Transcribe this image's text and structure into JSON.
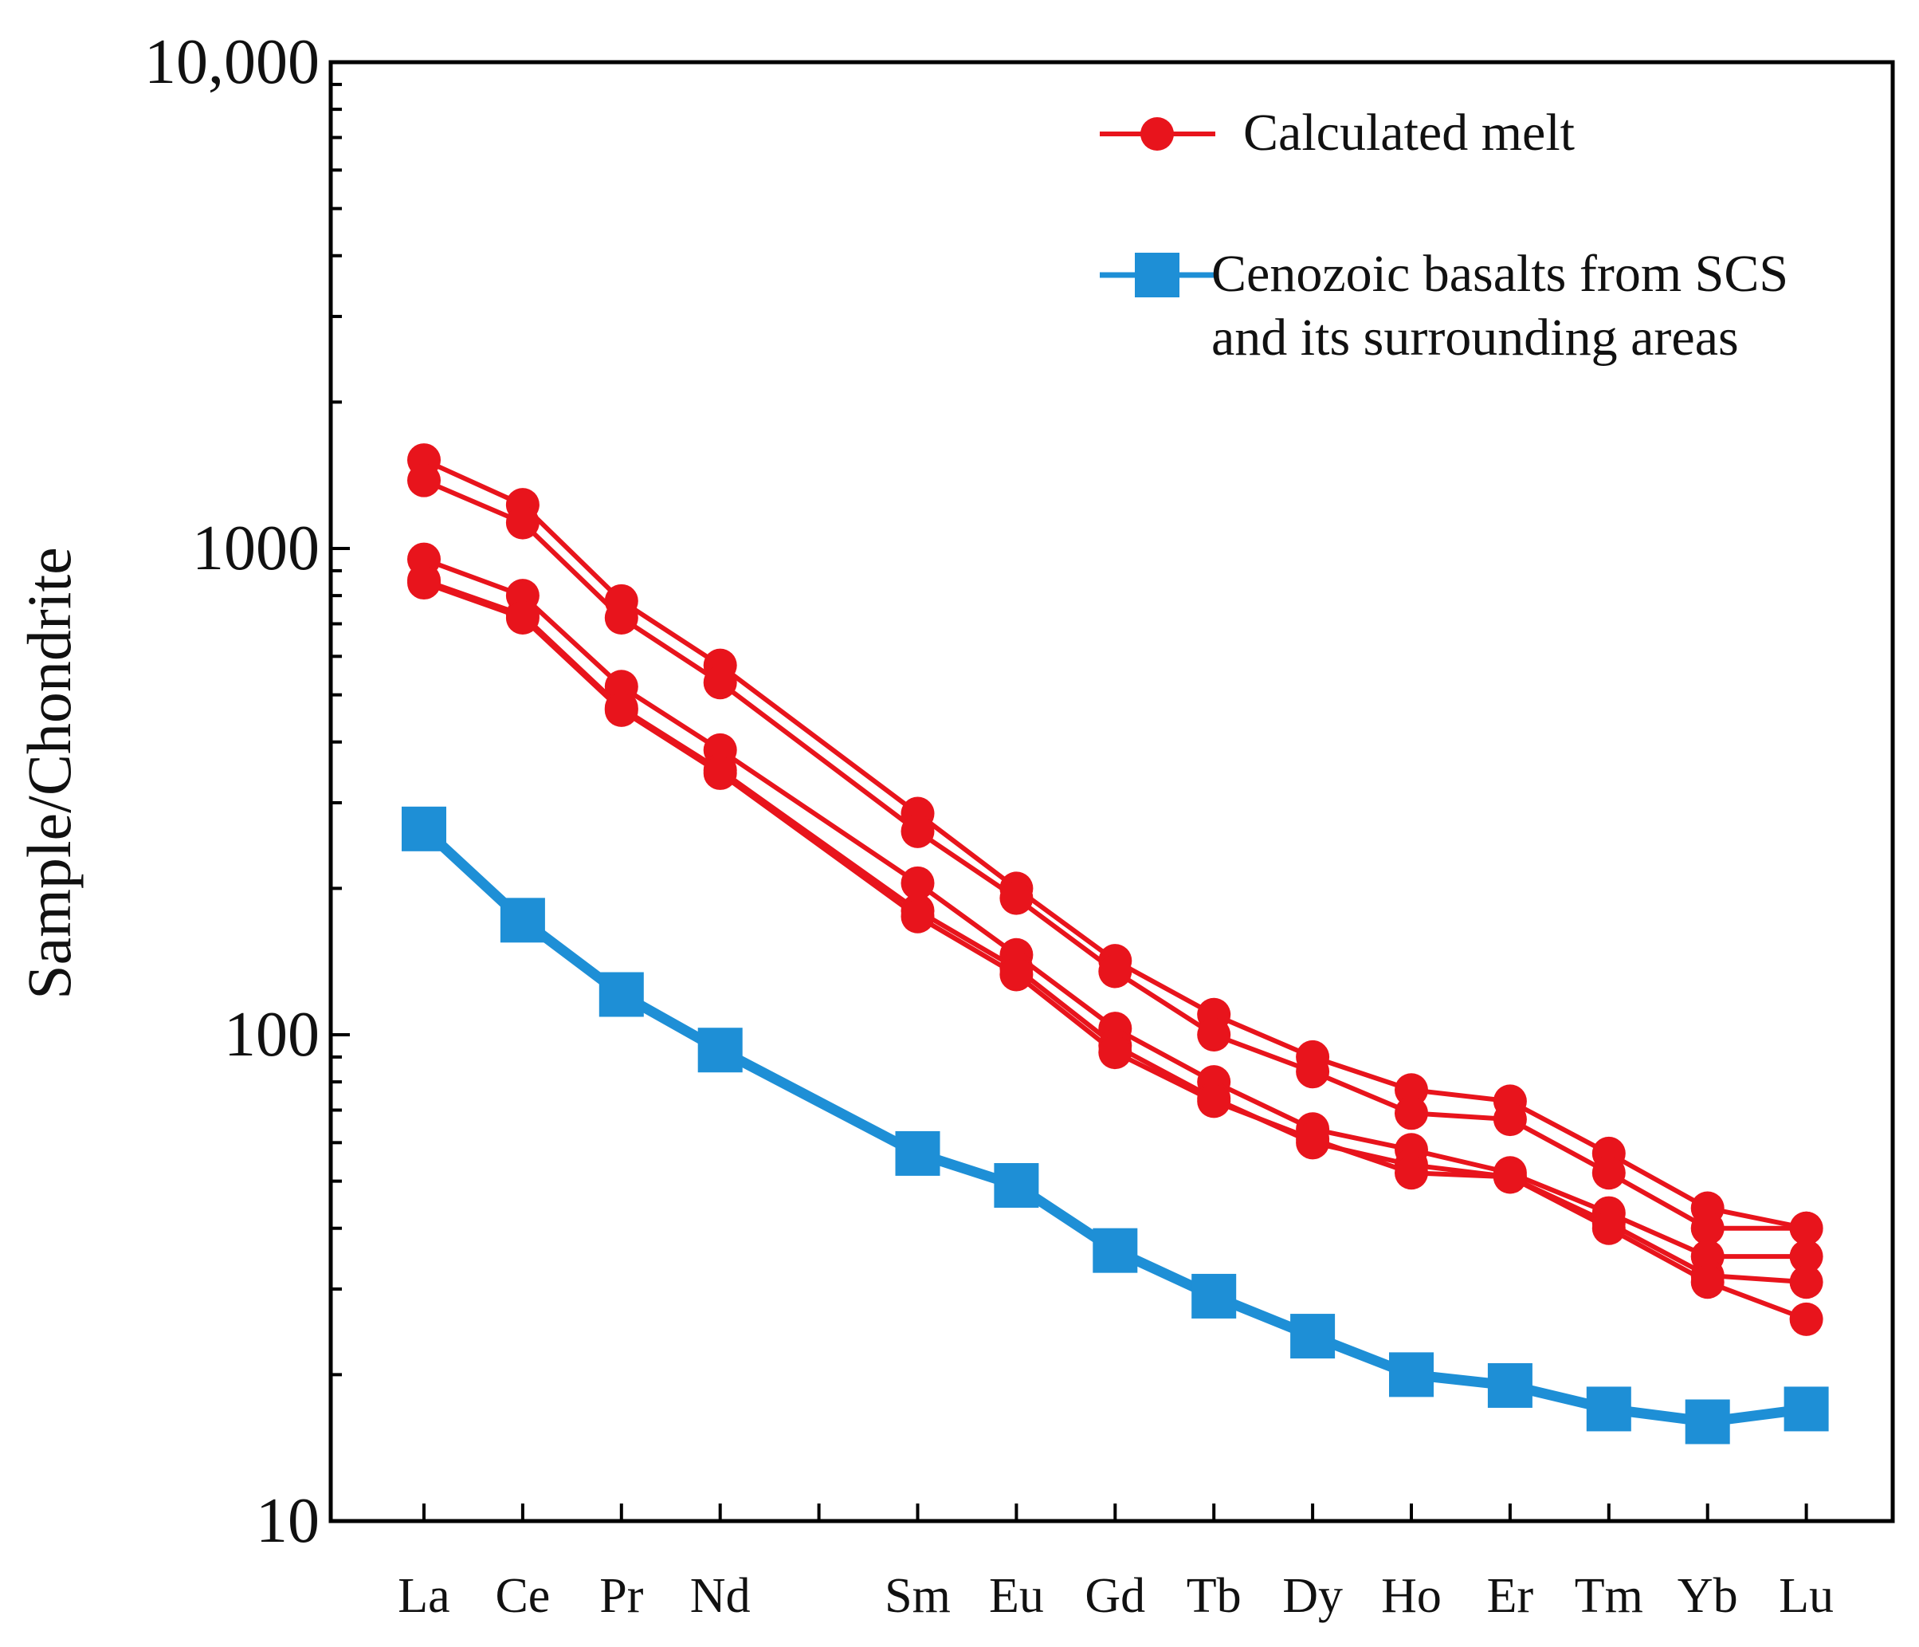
{
  "chart_data": {
    "type": "line",
    "ylabel": "Sample/Chondrite",
    "xlabel": "",
    "yscale": "log",
    "ylim": [
      10,
      10000
    ],
    "yticks": [
      {
        "value": 10,
        "label": "10"
      },
      {
        "value": 100,
        "label": "100"
      },
      {
        "value": 1000,
        "label": "1000"
      },
      {
        "value": 10000,
        "label": "10,000"
      }
    ],
    "categories": [
      "La",
      "Ce",
      "Pr",
      "Nd",
      "",
      "Sm",
      "Eu",
      "Gd",
      "Tb",
      "Dy",
      "Ho",
      "Er",
      "Tm",
      "Yb",
      "Lu"
    ],
    "grid": false,
    "legend": {
      "placement": "top-right",
      "entries": [
        {
          "label_lines": [
            "Calculated melt"
          ],
          "color": "#e8141c",
          "marker": "circle"
        },
        {
          "label_lines": [
            "Cenozoic basalts from SCS",
            "and its surrounding areas"
          ],
          "color": "#1e8fd6",
          "marker": "square"
        }
      ]
    },
    "series": [
      {
        "group": "Calculated melt",
        "color": "#e8141c",
        "marker": "circle",
        "values": [
          1520,
          1230,
          780,
          575,
          null,
          285,
          200,
          142,
          110,
          90,
          77,
          73,
          57,
          44,
          40
        ]
      },
      {
        "group": "Calculated melt",
        "color": "#e8141c",
        "marker": "circle",
        "values": [
          1380,
          1130,
          720,
          530,
          null,
          262,
          191,
          135,
          100,
          84,
          69,
          67,
          52,
          40,
          40
        ]
      },
      {
        "group": "Calculated melt",
        "color": "#e8141c",
        "marker": "circle",
        "values": [
          950,
          800,
          520,
          385,
          null,
          205,
          146,
          103,
          80,
          64,
          58,
          52,
          43,
          35,
          35
        ]
      },
      {
        "group": "Calculated melt",
        "color": "#e8141c",
        "marker": "circle",
        "values": [
          860,
          730,
          470,
          350,
          null,
          180,
          137,
          95,
          74,
          60,
          54,
          51,
          41,
          32,
          31
        ]
      },
      {
        "group": "Calculated melt",
        "color": "#e8141c",
        "marker": "circle",
        "values": [
          850,
          720,
          465,
          345,
          null,
          175,
          133,
          92,
          73,
          61,
          52,
          51,
          40,
          31,
          26
        ]
      },
      {
        "group": "Cenozoic basalts from SCS and its surrounding areas",
        "color": "#1e8fd6",
        "marker": "square",
        "values": [
          265,
          172,
          121,
          93,
          null,
          57,
          49,
          36,
          29,
          24,
          20,
          19,
          17,
          16,
          17
        ]
      }
    ]
  }
}
